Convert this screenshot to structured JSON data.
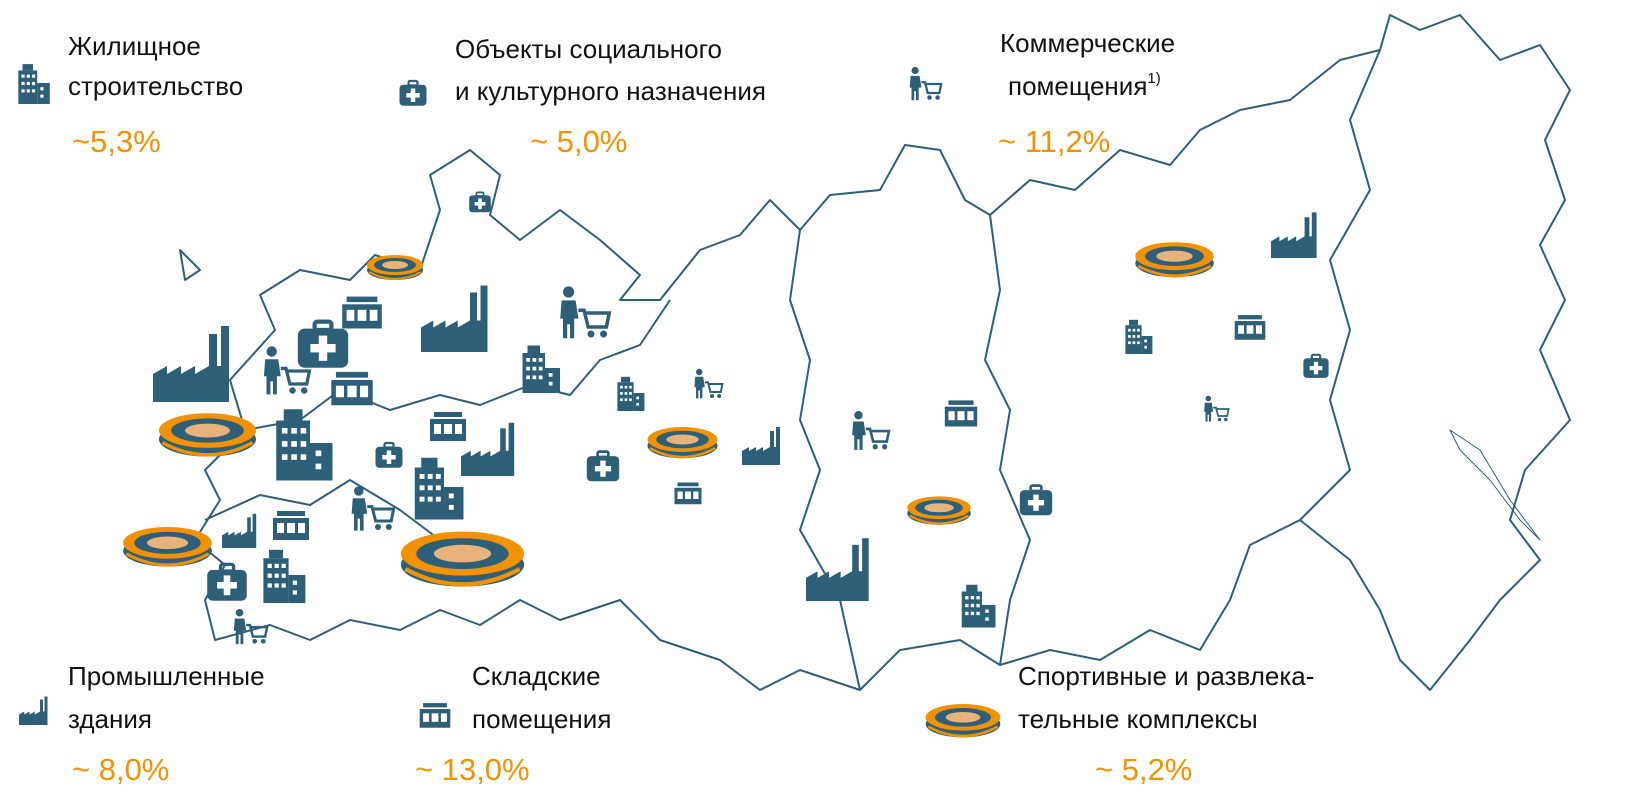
{
  "segments": [
    {
      "lines": [
        "Жилищное",
        "строительство"
      ],
      "share": "~5,3%"
    },
    {
      "lines": [
        "Объекты социального",
        "и культурного назначения"
      ],
      "share": "~ 5,0%"
    },
    {
      "lines": [
        "Коммерческие",
        "помещения"
      ],
      "note": "1)",
      "share": "~ 11,2%"
    },
    {
      "lines": [
        "Промышленные",
        "здания"
      ],
      "share": "~ 8,0%"
    },
    {
      "lines": [
        "Складские",
        "помещения"
      ],
      "share": "~ 13,0%"
    },
    {
      "lines": [
        "Спортивные и развлека-",
        "тельные комплексы"
      ],
      "share": "~ 5,2%"
    }
  ]
}
